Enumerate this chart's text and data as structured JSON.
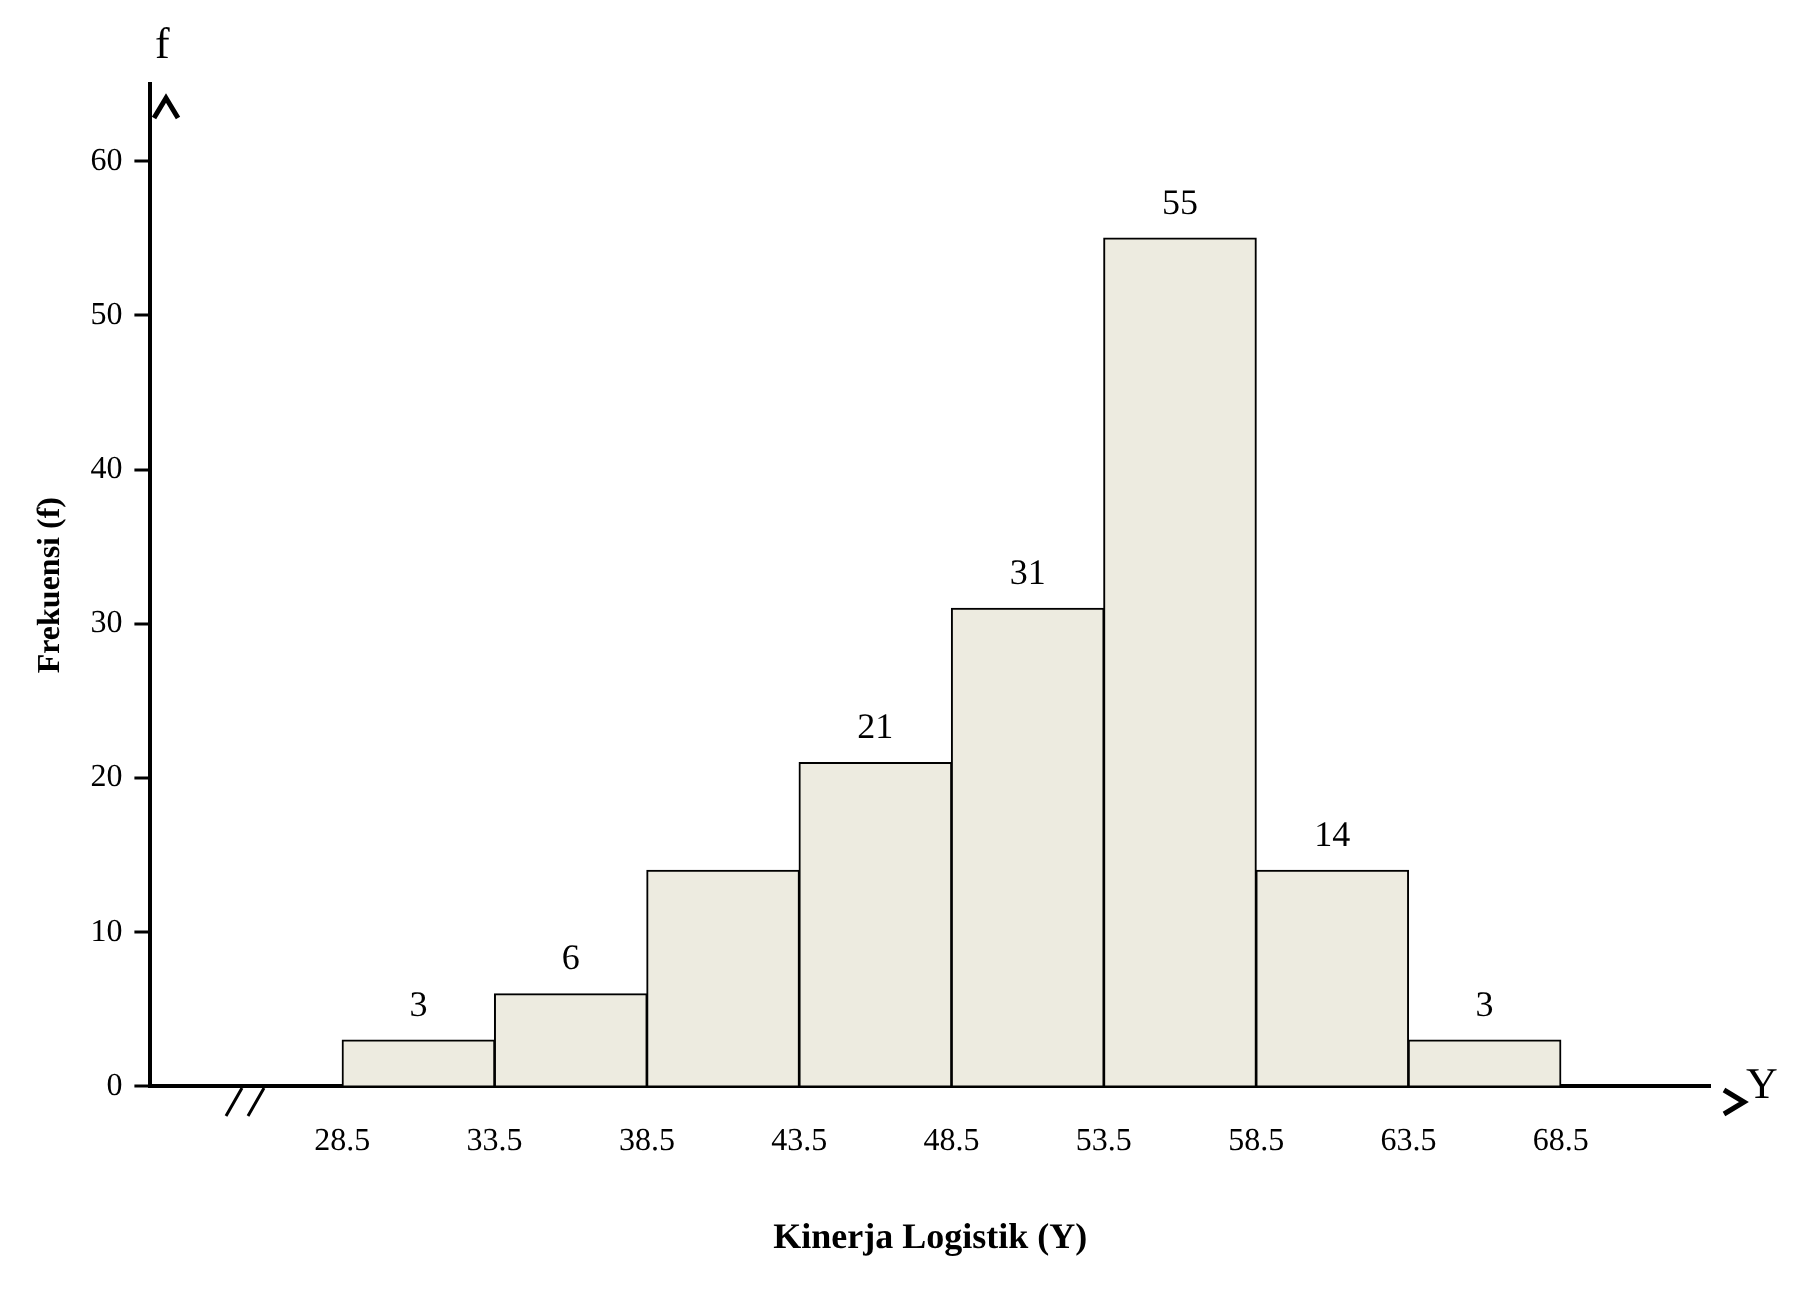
{
  "chart_data": {
    "type": "histogram",
    "xlabel": "Kinerja Logistik (Y)",
    "ylabel": "Frekuensi (f)",
    "annotations": [
      "f",
      "Y"
    ],
    "bins": [
      28.5,
      33.5,
      38.5,
      43.5,
      48.5,
      53.5,
      58.5,
      63.5,
      68.5
    ],
    "values": [
      3,
      6,
      14,
      21,
      31,
      55,
      14,
      3
    ],
    "value_labels": [
      "3",
      "6",
      null,
      "21",
      "31",
      "55",
      "14",
      "3"
    ],
    "color": "#edebe0",
    "xlim": [
      22.2,
      73.4
    ],
    "xticks": [
      28.5,
      33.5,
      38.5,
      43.5,
      48.5,
      53.5,
      58.5,
      63.5,
      68.5
    ],
    "ylim": [
      0,
      65
    ],
    "yticks": [
      0,
      10,
      20,
      30,
      40,
      50,
      60
    ]
  }
}
